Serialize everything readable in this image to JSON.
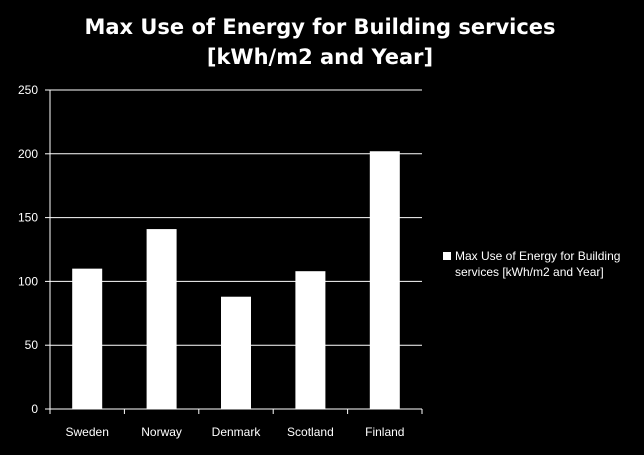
{
  "chart_data": {
    "type": "bar",
    "title_lines": [
      "Max Use of Energy for Building services",
      "[kWh/m2 and Year]"
    ],
    "xlabel": "",
    "ylabel": "",
    "categories": [
      "Sweden",
      "Norway",
      "Denmark",
      "Scotland",
      "Finland"
    ],
    "series": [
      {
        "name": "Max Use of Energy for Building services [kWh/m2 and Year]",
        "values": [
          110,
          141,
          88,
          108,
          202
        ]
      }
    ],
    "ylim": [
      0,
      250
    ],
    "yticks": [
      0,
      50,
      100,
      150,
      200,
      250
    ],
    "grid": true,
    "legend": "right",
    "colors": {
      "background": "#000000",
      "bar": "#ffffff",
      "gridline": "#ffffff",
      "text": "#ffffff"
    }
  }
}
